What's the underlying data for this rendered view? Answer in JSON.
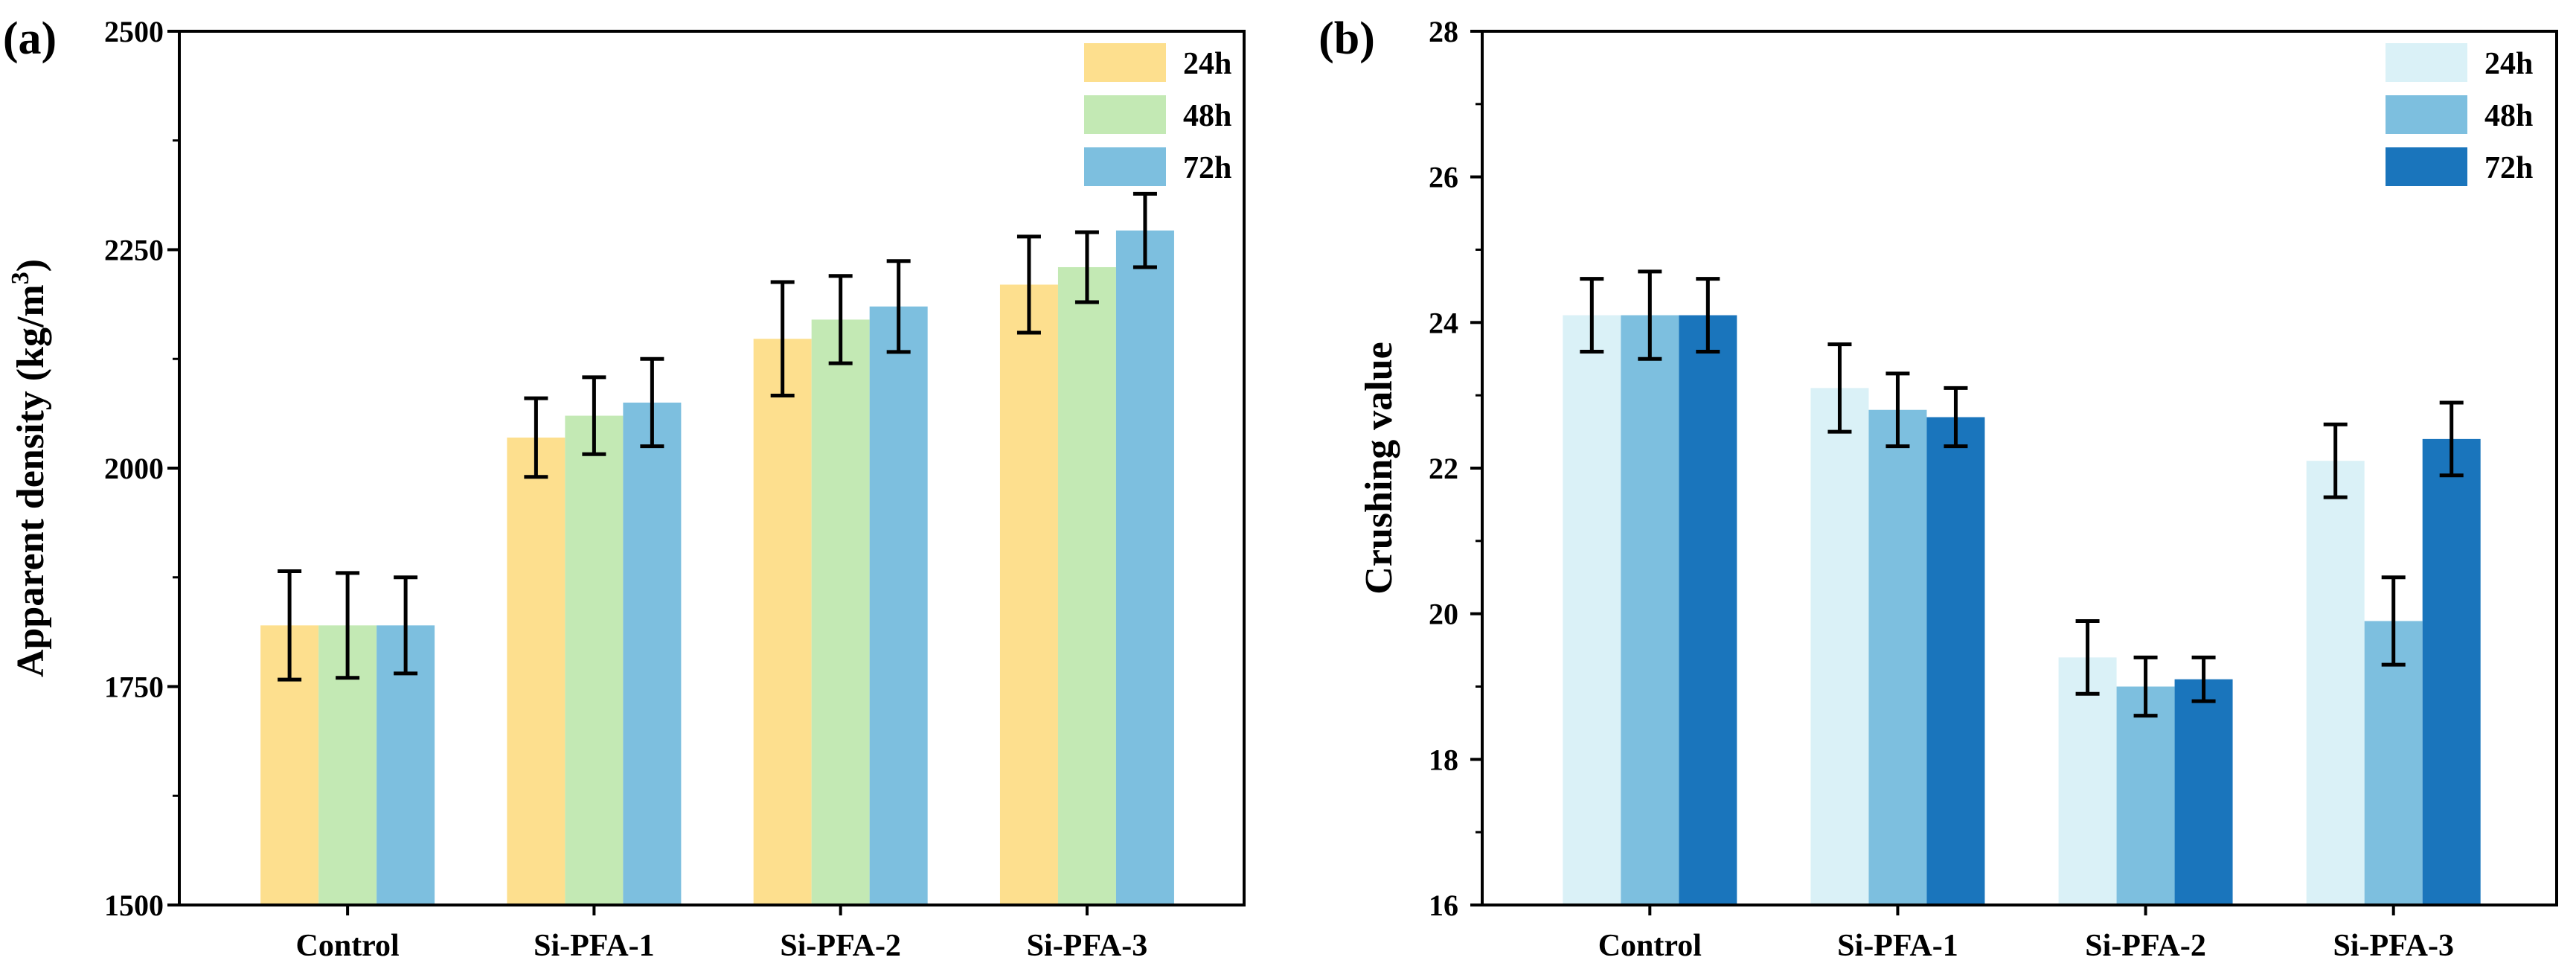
{
  "chart_data": [
    {
      "type": "bar",
      "panel_label": "(a)",
      "title": "",
      "xlabel": "",
      "ylabel": "Apparent density (kg/m",
      "ylabel_sup": "3",
      "ylabel_close": ")",
      "ylim": [
        1500,
        2500
      ],
      "yticks": [
        1500,
        1750,
        2000,
        2250,
        2500
      ],
      "categories": [
        "Control",
        "Si-PFA-1",
        "Si-PFA-2",
        "Si-PFA-3"
      ],
      "series": [
        {
          "name": "24h",
          "color": "#FDDF8E",
          "values": [
            1820,
            2035,
            2148,
            2210
          ],
          "errors": [
            62,
            45,
            65,
            55
          ]
        },
        {
          "name": "48h",
          "color": "#C3E9B4",
          "values": [
            1820,
            2060,
            2170,
            2230
          ],
          "errors": [
            60,
            44,
            50,
            40
          ]
        },
        {
          "name": "72h",
          "color": "#7DBFDF",
          "values": [
            1820,
            2075,
            2185,
            2272
          ],
          "errors": [
            55,
            50,
            52,
            42
          ]
        }
      ],
      "legend": {
        "position": "top-right"
      }
    },
    {
      "type": "bar",
      "panel_label": "(b)",
      "title": "",
      "xlabel": "",
      "ylabel": "Crushing value",
      "ylim": [
        16,
        28
      ],
      "yticks": [
        16,
        18,
        20,
        22,
        24,
        26,
        28
      ],
      "categories": [
        "Control",
        "Si-PFA-1",
        "Si-PFA-2",
        "Si-PFA-3"
      ],
      "series": [
        {
          "name": "24h",
          "color": "#DAF1F7",
          "values": [
            24.1,
            23.1,
            19.4,
            22.1
          ],
          "errors": [
            0.5,
            0.6,
            0.5,
            0.5
          ]
        },
        {
          "name": "48h",
          "color": "#7DBFDF",
          "values": [
            24.1,
            22.8,
            19.0,
            19.9
          ],
          "errors": [
            0.6,
            0.5,
            0.4,
            0.6
          ]
        },
        {
          "name": "72h",
          "color": "#1A75BC",
          "values": [
            24.1,
            22.7,
            19.1,
            22.4
          ],
          "errors": [
            0.5,
            0.4,
            0.3,
            0.5
          ]
        }
      ],
      "legend": {
        "position": "top-right"
      }
    }
  ]
}
